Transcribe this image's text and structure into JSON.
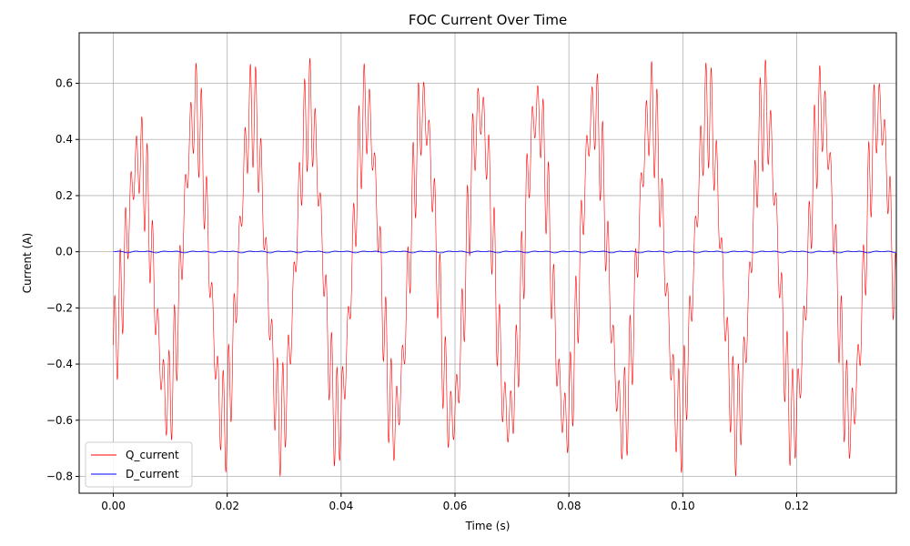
{
  "chart_data": {
    "type": "line",
    "title": "FOC Current Over Time",
    "xlabel": "Time (s)",
    "ylabel": "Current (A)",
    "xlim": [
      -0.006,
      0.1375
    ],
    "ylim": [
      -0.86,
      0.78
    ],
    "xticks": [
      0.0,
      0.02,
      0.04,
      0.06,
      0.08,
      0.1,
      0.12
    ],
    "xtick_labels": [
      "0.00",
      "0.02",
      "0.04",
      "0.06",
      "0.08",
      "0.10",
      "0.12"
    ],
    "yticks": [
      -0.8,
      -0.6,
      -0.4,
      -0.2,
      0.0,
      0.2,
      0.4,
      0.6
    ],
    "ytick_labels": [
      "−0.8",
      "−0.6",
      "−0.4",
      "−0.2",
      "0.0",
      "0.2",
      "0.4",
      "0.6"
    ],
    "grid": true,
    "legend_position": "lower-left",
    "series": [
      {
        "name": "Q_current",
        "color": "#ff0000",
        "description_values": {
          "t_start": 0.0,
          "t_end": 0.1375,
          "slow_period_s": 0.01,
          "slow_amplitude_A": 0.55,
          "fast_ripple_amplitude_A": 0.2,
          "peak_max_A": 0.77,
          "trough_min_A": -0.8
        }
      },
      {
        "name": "D_current",
        "color": "#0000ff",
        "description_values": {
          "t_start": 0.0,
          "t_end": 0.1375,
          "mean_A": 0.0,
          "ripple_amplitude_A": 0.004
        }
      }
    ]
  }
}
